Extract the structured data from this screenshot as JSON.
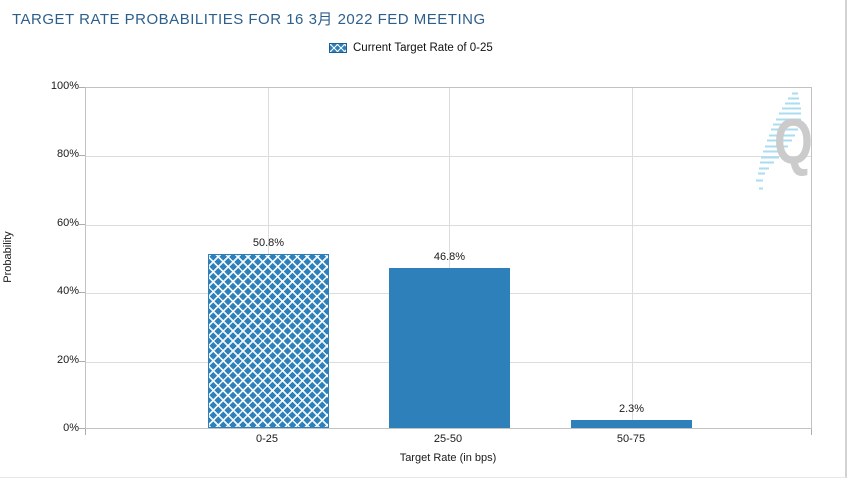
{
  "header": {
    "title": "TARGET RATE PROBABILITIES FOR 16 3月 2022 FED MEETING"
  },
  "legend": {
    "label": "Current Target Rate of 0-25"
  },
  "watermark": {
    "letter": "Q"
  },
  "chart_data": {
    "type": "bar",
    "title": "TARGET RATE PROBABILITIES FOR 16 3月 2022 FED MEETING",
    "categories": [
      "0-25",
      "25-50",
      "50-75"
    ],
    "values": [
      50.8,
      46.8,
      2.3
    ],
    "value_labels": [
      "50.8%",
      "46.8%",
      "2.3%"
    ],
    "xlabel": "Target Rate (in bps)",
    "ylabel": "Probability",
    "ylim": [
      0,
      100
    ],
    "ytick_labels": [
      "0%",
      "20%",
      "40%",
      "60%",
      "80%",
      "100%"
    ],
    "grid": true,
    "legend_position": "top-center",
    "legend_entries": [
      "Current Target Rate of 0-25"
    ],
    "series_styles": [
      "hatched",
      "solid",
      "solid"
    ],
    "colors": {
      "bar": "#2e80ba",
      "title_text": "#2d5f8d",
      "gridline": "#dcdcdc",
      "watermark_q": "#cbcbcb",
      "watermark_stripes": "#aadcf2"
    }
  }
}
